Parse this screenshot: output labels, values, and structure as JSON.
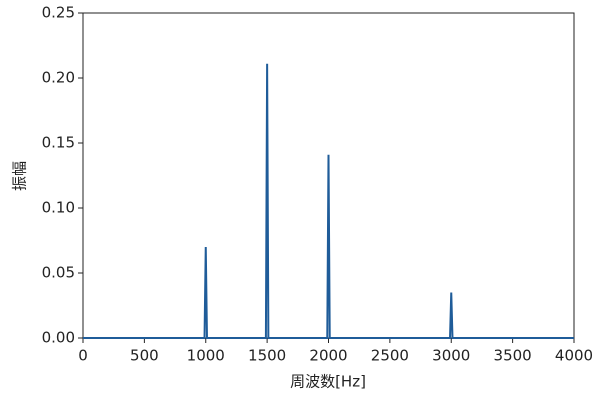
{
  "chart_data": {
    "type": "line",
    "xlabel": "周波数[Hz]",
    "ylabel": "振幅",
    "x": [
      0,
      990,
      1000,
      1010,
      1490,
      1500,
      1510,
      1990,
      2000,
      2010,
      2990,
      3000,
      3010,
      4000
    ],
    "series": [
      {
        "color": "#1f5c99",
        "values": [
          0,
          0,
          0.07,
          0,
          0,
          0.211,
          0,
          0,
          0.141,
          0,
          0,
          0.035,
          0,
          0
        ]
      }
    ],
    "xlim": [
      0,
      4000
    ],
    "xticks": [
      0,
      500,
      1000,
      1500,
      2000,
      2500,
      3000,
      3500,
      4000
    ],
    "ylim": [
      0,
      0.25
    ],
    "yticks": [
      {
        "value": 0,
        "label": "0.00"
      },
      {
        "value": 0.05,
        "label": "0.05"
      },
      {
        "value": 0.1,
        "label": "0.10"
      },
      {
        "value": 0.15,
        "label": "0.15"
      },
      {
        "value": 0.2,
        "label": "0.20"
      },
      {
        "value": 0.25,
        "label": "0.25"
      }
    ],
    "grid": false
  }
}
